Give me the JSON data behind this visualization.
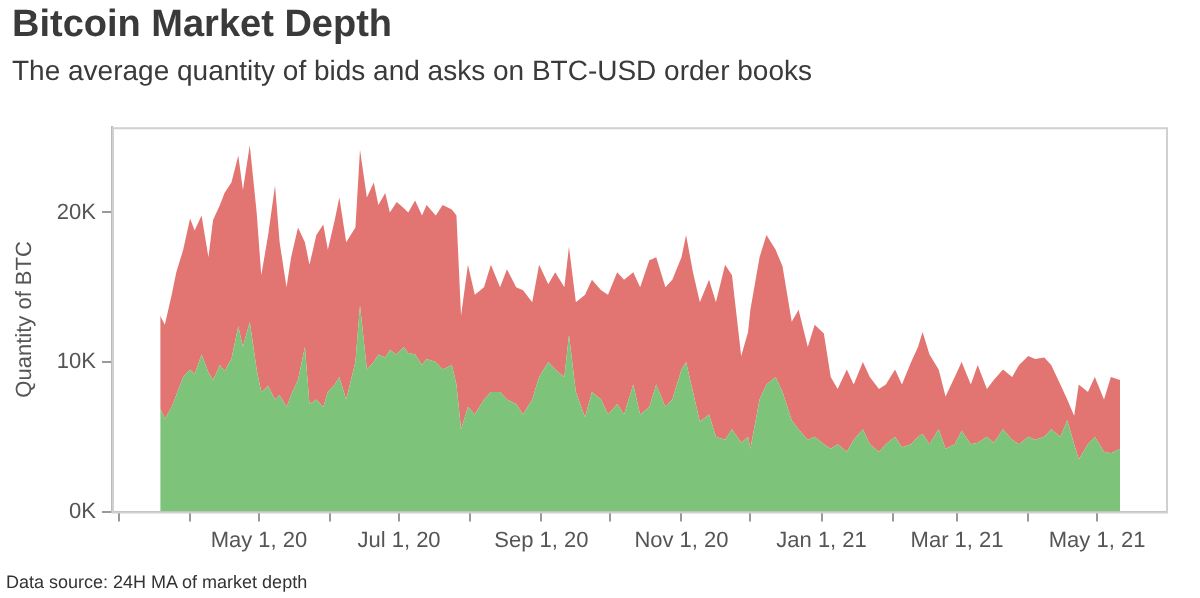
{
  "chart_data": {
    "type": "area",
    "title": "Bitcoin Market Depth",
    "subtitle": "The average quantity of bids and asks on BTC-USD order books",
    "ylabel": "Quantity of BTC",
    "annotations": [
      "Data source: 24H MA of market depth"
    ],
    "stacked": true,
    "x": [
      "2020-03-19",
      "2020-03-21",
      "2020-03-24",
      "2020-03-26",
      "2020-03-29",
      "2020-04-01",
      "2020-04-03",
      "2020-04-06",
      "2020-04-09",
      "2020-04-11",
      "2020-04-14",
      "2020-04-16",
      "2020-04-19",
      "2020-04-22",
      "2020-04-24",
      "2020-04-27",
      "2020-04-30",
      "2020-05-02",
      "2020-05-05",
      "2020-05-08",
      "2020-05-10",
      "2020-05-13",
      "2020-05-15",
      "2020-05-18",
      "2020-05-21",
      "2020-05-23",
      "2020-05-26",
      "2020-05-29",
      "2020-05-31",
      "2020-06-03",
      "2020-06-05",
      "2020-06-08",
      "2020-06-12",
      "2020-06-14",
      "2020-06-17",
      "2020-06-20",
      "2020-06-22",
      "2020-06-25",
      "2020-06-27",
      "2020-06-30",
      "2020-07-03",
      "2020-07-05",
      "2020-07-08",
      "2020-07-11",
      "2020-07-13",
      "2020-07-17",
      "2020-07-20",
      "2020-07-24",
      "2020-07-26",
      "2020-07-28",
      "2020-07-31",
      "2020-08-03",
      "2020-08-07",
      "2020-08-10",
      "2020-08-14",
      "2020-08-17",
      "2020-08-21",
      "2020-08-24",
      "2020-08-28",
      "2020-08-31",
      "2020-09-04",
      "2020-09-07",
      "2020-09-11",
      "2020-09-13",
      "2020-09-16",
      "2020-09-20",
      "2020-09-23",
      "2020-09-27",
      "2020-09-30",
      "2020-10-04",
      "2020-10-07",
      "2020-10-11",
      "2020-10-14",
      "2020-10-18",
      "2020-10-21",
      "2020-10-25",
      "2020-10-28",
      "2020-11-01",
      "2020-11-03",
      "2020-11-06",
      "2020-11-09",
      "2020-11-13",
      "2020-11-16",
      "2020-11-20",
      "2020-11-23",
      "2020-11-27",
      "2020-11-30",
      "2020-12-01",
      "2020-12-05",
      "2020-12-08",
      "2020-12-12",
      "2020-12-15",
      "2020-12-19",
      "2020-12-22",
      "2020-12-26",
      "2020-12-29",
      "2021-01-02",
      "2021-01-05",
      "2021-01-08",
      "2021-01-12",
      "2021-01-15",
      "2021-01-19",
      "2021-01-22",
      "2021-01-26",
      "2021-01-29",
      "2021-02-02",
      "2021-02-05",
      "2021-02-09",
      "2021-02-12",
      "2021-02-14",
      "2021-02-17",
      "2021-02-21",
      "2021-02-24",
      "2021-02-28",
      "2021-03-03",
      "2021-03-07",
      "2021-03-10",
      "2021-03-14",
      "2021-03-17",
      "2021-03-21",
      "2021-03-25",
      "2021-03-28",
      "2021-04-01",
      "2021-04-04",
      "2021-04-08",
      "2021-04-11",
      "2021-04-15",
      "2021-04-18",
      "2021-04-21",
      "2021-04-23",
      "2021-04-27",
      "2021-04-30",
      "2021-05-04",
      "2021-05-07",
      "2021-05-11"
    ],
    "series": [
      {
        "color": "#7dc47a",
        "values": [
          6900,
          6200,
          7000,
          7800,
          9000,
          9500,
          9200,
          10500,
          9300,
          8800,
          9800,
          9400,
          10200,
          12400,
          11000,
          12700,
          9500,
          8000,
          8400,
          7500,
          7800,
          7000,
          7800,
          8800,
          11000,
          7200,
          7500,
          7000,
          8000,
          8500,
          9000,
          7500,
          10000,
          13800,
          9500,
          10000,
          10500,
          10300,
          10800,
          10500,
          11000,
          10600,
          10500,
          9800,
          10200,
          10000,
          9500,
          9800,
          8500,
          5500,
          7000,
          6500,
          7500,
          8000,
          8000,
          7500,
          7200,
          6500,
          7500,
          9000,
          10000,
          9500,
          9000,
          11800,
          8000,
          6300,
          8000,
          7500,
          6500,
          7200,
          6500,
          8500,
          6500,
          7000,
          8500,
          7000,
          7500,
          9500,
          10000,
          8000,
          6000,
          6500,
          5000,
          4800,
          5500,
          4600,
          5000,
          4200,
          7500,
          8500,
          9000,
          8000,
          6100,
          5500,
          4800,
          5000,
          4500,
          4200,
          4500,
          4000,
          4800,
          5500,
          4500,
          4000,
          4500,
          5000,
          4300,
          4500,
          5000,
          5200,
          4500,
          5500,
          4200,
          4500,
          5400,
          4500,
          4600,
          5000,
          4600,
          5500,
          4800,
          4500,
          5000,
          4800,
          5000,
          5500,
          5000,
          6100,
          4500,
          3500,
          4500,
          5000,
          4000,
          3900,
          4200
        ]
      },
      {
        "color": "#e27472",
        "values": [
          6200,
          6300,
          7500,
          8200,
          8500,
          10100,
          9600,
          9300,
          7700,
          10700,
          10700,
          11900,
          11800,
          11400,
          10500,
          11800,
          10500,
          7800,
          10100,
          14300,
          10200,
          8000,
          9200,
          10200,
          7000,
          9300,
          11000,
          12200,
          9500,
          11000,
          12000,
          10500,
          9000,
          10400,
          11500,
          12000,
          10000,
          11000,
          9200,
          10200,
          9300,
          9400,
          10300,
          10000,
          10300,
          9800,
          11000,
          10400,
          11300,
          7600,
          9500,
          8000,
          7500,
          8500,
          7000,
          8700,
          7800,
          8300,
          6500,
          7500,
          5200,
          6500,
          6000,
          5900,
          6000,
          8200,
          7500,
          7300,
          8000,
          8800,
          9000,
          7500,
          8500,
          9800,
          8500,
          8000,
          8000,
          7500,
          8500,
          8000,
          8000,
          9000,
          9000,
          11700,
          10300,
          5800,
          7000,
          9300,
          9500,
          10000,
          8500,
          8400,
          6600,
          8000,
          6200,
          7500,
          7400,
          4800,
          3700,
          5500,
          3700,
          4500,
          4500,
          4200,
          4000,
          4500,
          4200,
          5500,
          6000,
          6800,
          6000,
          4000,
          3500,
          4500,
          4600,
          4000,
          5200,
          3200,
          4200,
          4000,
          4200,
          5300,
          5400,
          5400,
          5300,
          4300,
          3500,
          1400,
          1900,
          5000,
          3500,
          4000,
          3500,
          5100,
          4600
        ]
      }
    ],
    "xlim": [
      "2020-02-27",
      "2021-05-31"
    ],
    "xticks": [
      {
        "value": "2020-03-01",
        "label": null
      },
      {
        "value": "2020-04-01",
        "label": null
      },
      {
        "value": "2020-05-01",
        "label": "May 1, 20"
      },
      {
        "value": "2020-06-01",
        "label": null
      },
      {
        "value": "2020-07-01",
        "label": "Jul 1, 20"
      },
      {
        "value": "2020-08-01",
        "label": null
      },
      {
        "value": "2020-09-01",
        "label": "Sep 1, 20"
      },
      {
        "value": "2020-10-01",
        "label": null
      },
      {
        "value": "2020-11-01",
        "label": "Nov 1, 20"
      },
      {
        "value": "2020-12-01",
        "label": null
      },
      {
        "value": "2021-01-01",
        "label": "Jan 1, 21"
      },
      {
        "value": "2021-02-01",
        "label": null
      },
      {
        "value": "2021-03-01",
        "label": "Mar 1, 21"
      },
      {
        "value": "2021-04-01",
        "label": null
      },
      {
        "value": "2021-05-01",
        "label": "May 1, 21"
      }
    ],
    "ylim": [
      0,
      25700
    ],
    "yticks": [
      {
        "value": 0,
        "label": "0K"
      },
      {
        "value": 10000,
        "label": "10K"
      },
      {
        "value": 20000,
        "label": "20K"
      }
    ]
  }
}
